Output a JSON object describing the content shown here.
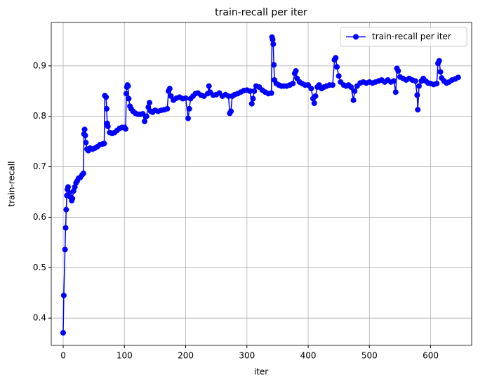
{
  "chart_data": {
    "type": "line",
    "title": "train-recall per iter",
    "xlabel": "iter",
    "ylabel": "train-recall",
    "x": [
      0,
      1,
      3,
      4,
      5,
      6,
      7,
      8,
      10,
      12,
      14,
      15,
      17,
      19,
      21,
      23,
      25,
      28,
      31,
      33,
      34,
      35,
      36,
      37,
      39,
      41,
      44,
      48,
      52,
      56,
      60,
      64,
      67,
      68,
      70,
      71,
      72,
      73,
      76,
      80,
      84,
      88,
      92,
      96,
      100,
      102,
      103,
      104,
      105,
      106,
      107,
      109,
      111,
      114,
      118,
      122,
      126,
      130,
      133,
      136,
      139,
      141,
      143,
      146,
      150,
      155,
      160,
      165,
      170,
      172,
      174,
      176,
      180,
      185,
      190,
      195,
      200,
      204,
      206,
      208,
      212,
      216,
      220,
      225,
      230,
      236,
      238,
      240,
      245,
      250,
      255,
      260,
      265,
      270,
      272,
      274,
      276,
      280,
      285,
      290,
      295,
      300,
      305,
      308,
      310,
      312,
      315,
      320,
      325,
      330,
      335,
      340,
      341,
      342,
      343,
      344,
      345,
      348,
      352,
      356,
      360,
      365,
      370,
      375,
      378,
      380,
      382,
      386,
      390,
      395,
      400,
      405,
      408,
      410,
      412,
      415,
      418,
      422,
      426,
      430,
      435,
      440,
      443,
      445,
      447,
      450,
      453,
      458,
      462,
      466,
      470,
      474,
      476,
      480,
      485,
      490,
      495,
      500,
      505,
      510,
      515,
      520,
      525,
      530,
      535,
      540,
      543,
      545,
      547,
      550,
      555,
      560,
      565,
      570,
      575,
      578,
      579,
      581,
      585,
      588,
      592,
      596,
      600,
      605,
      610,
      612,
      614,
      616,
      618,
      622,
      626,
      630,
      635,
      640,
      645
    ],
    "series": [
      {
        "name": "train-recall per iter",
        "color": "#0000ff",
        "values": [
          0.371,
          0.445,
          0.536,
          0.579,
          0.615,
          0.643,
          0.655,
          0.66,
          0.648,
          0.64,
          0.633,
          0.637,
          0.652,
          0.66,
          0.668,
          0.672,
          0.677,
          0.679,
          0.684,
          0.687,
          0.765,
          0.774,
          0.762,
          0.748,
          0.735,
          0.732,
          0.737,
          0.735,
          0.737,
          0.74,
          0.744,
          0.745,
          0.746,
          0.841,
          0.838,
          0.815,
          0.786,
          0.78,
          0.768,
          0.766,
          0.768,
          0.772,
          0.776,
          0.778,
          0.778,
          0.775,
          0.845,
          0.858,
          0.862,
          0.86,
          0.835,
          0.82,
          0.815,
          0.81,
          0.806,
          0.804,
          0.804,
          0.805,
          0.79,
          0.8,
          0.818,
          0.827,
          0.81,
          0.808,
          0.812,
          0.81,
          0.812,
          0.813,
          0.815,
          0.85,
          0.855,
          0.84,
          0.832,
          0.836,
          0.838,
          0.835,
          0.836,
          0.796,
          0.815,
          0.835,
          0.84,
          0.845,
          0.846,
          0.842,
          0.84,
          0.845,
          0.86,
          0.848,
          0.842,
          0.843,
          0.846,
          0.84,
          0.843,
          0.84,
          0.806,
          0.81,
          0.84,
          0.843,
          0.845,
          0.848,
          0.851,
          0.852,
          0.85,
          0.825,
          0.835,
          0.85,
          0.86,
          0.858,
          0.852,
          0.848,
          0.845,
          0.846,
          0.957,
          0.952,
          0.943,
          0.902,
          0.872,
          0.865,
          0.862,
          0.86,
          0.86,
          0.86,
          0.862,
          0.865,
          0.885,
          0.89,
          0.875,
          0.868,
          0.865,
          0.862,
          0.862,
          0.855,
          0.835,
          0.826,
          0.84,
          0.858,
          0.862,
          0.855,
          0.858,
          0.86,
          0.862,
          0.862,
          0.912,
          0.916,
          0.898,
          0.88,
          0.868,
          0.862,
          0.86,
          0.862,
          0.858,
          0.832,
          0.85,
          0.86,
          0.866,
          0.868,
          0.866,
          0.868,
          0.866,
          0.868,
          0.87,
          0.872,
          0.868,
          0.872,
          0.868,
          0.87,
          0.848,
          0.895,
          0.89,
          0.878,
          0.875,
          0.872,
          0.875,
          0.872,
          0.87,
          0.842,
          0.813,
          0.86,
          0.87,
          0.875,
          0.87,
          0.866,
          0.865,
          0.863,
          0.865,
          0.905,
          0.91,
          0.888,
          0.876,
          0.87,
          0.866,
          0.868,
          0.872,
          0.874,
          0.877
        ]
      }
    ],
    "xlim": [
      -19.5,
      667
    ],
    "xticks": [
      0,
      100,
      200,
      300,
      400,
      500,
      600
    ],
    "ylim": [
      0.346,
      0.986
    ],
    "yticks": [
      0.4,
      0.5,
      0.6,
      0.7,
      0.8,
      0.9
    ],
    "grid": true,
    "legend": "upper right"
  }
}
